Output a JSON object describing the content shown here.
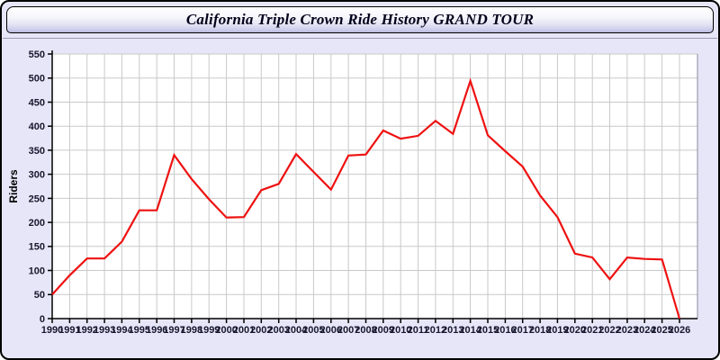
{
  "window": {
    "title": "California Triple Crown Ride History GRAND TOUR"
  },
  "colors": {
    "window_background": "#e6e6f8",
    "window_border": "#000000",
    "plot_background": "#ffffff",
    "gridline": "#c9c9c9",
    "plot_right_border": "#8a8a9c",
    "axis": "#000000",
    "tick_label_text": "#16162e",
    "title_text": "#00001a",
    "line": "#ee1111"
  },
  "chart_data": {
    "type": "line",
    "title": "California Triple Crown Ride History GRAND TOUR",
    "xlabel": "",
    "ylabel": "Riders",
    "x": [
      1990,
      1991,
      1992,
      1993,
      1994,
      1995,
      1996,
      1997,
      1998,
      1999,
      2000,
      2001,
      2002,
      2003,
      2004,
      2005,
      2006,
      2007,
      2008,
      2009,
      2010,
      2011,
      2012,
      2013,
      2014,
      2015,
      2016,
      2017,
      2018,
      2019,
      2020,
      2021,
      2022,
      2023,
      2024,
      2025,
      2026
    ],
    "series": [
      {
        "name": "Riders",
        "color": "#ee1111",
        "values": [
          50,
          90,
          125,
          125,
          160,
          225,
          225,
          340,
          290,
          248,
          210,
          211,
          267,
          280,
          342,
          305,
          268,
          339,
          341,
          391,
          374,
          380,
          411,
          384,
          494,
          381,
          348,
          316,
          256,
          211,
          135,
          127,
          82,
          127,
          124,
          123,
          0
        ]
      }
    ],
    "ylim": [
      0,
      550
    ],
    "ytick_step": 50,
    "grid": true,
    "legend": false
  }
}
